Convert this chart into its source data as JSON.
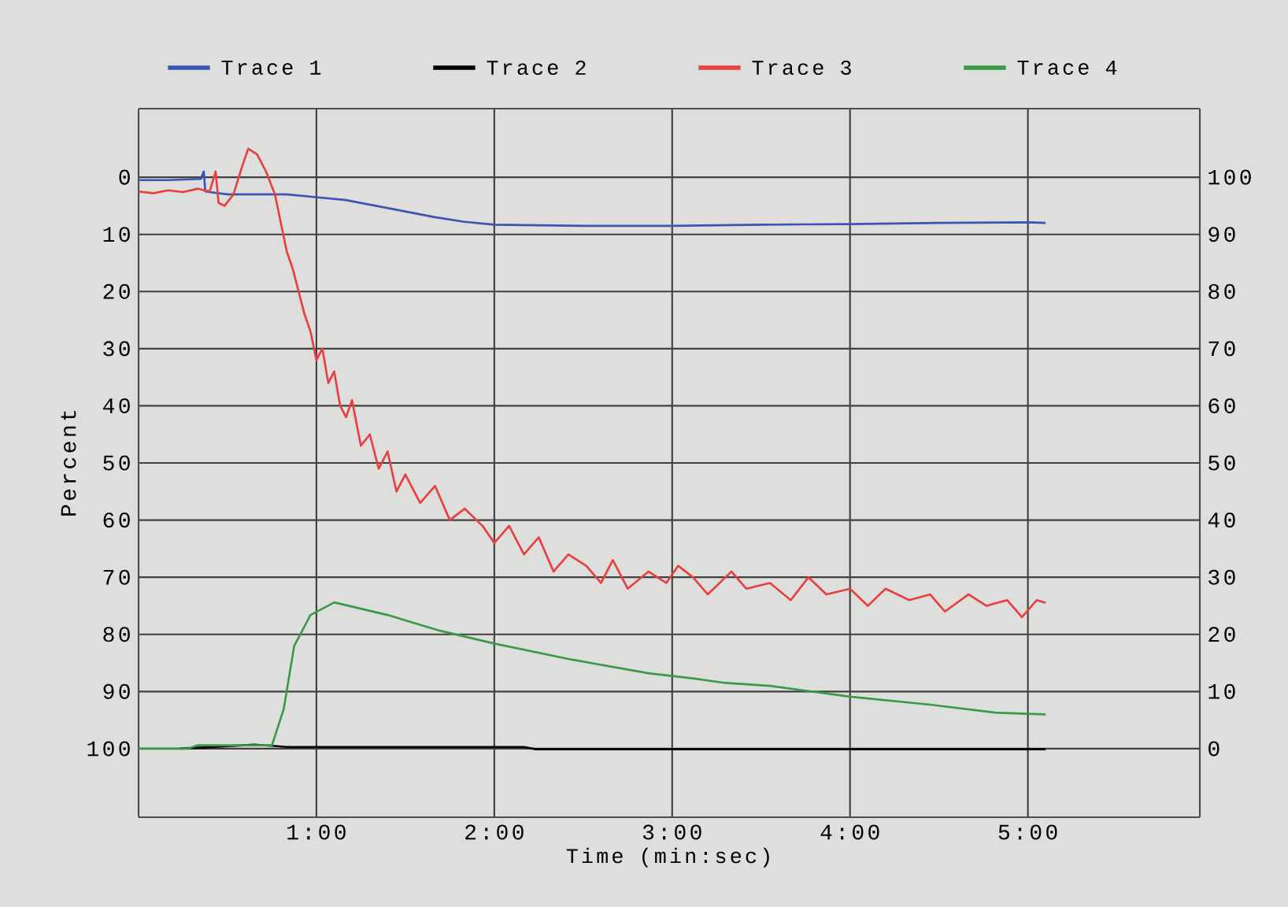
{
  "chart_data": {
    "type": "line",
    "xlabel": "Time (min:sec)",
    "ylabel": "Percent",
    "xlim": [
      0,
      358
    ],
    "ylim": [
      112,
      -12
    ],
    "y2lim": [
      -12,
      112
    ],
    "xticks": [
      {
        "value": 60,
        "label": "1:00"
      },
      {
        "value": 120,
        "label": "2:00"
      },
      {
        "value": 180,
        "label": "3:00"
      },
      {
        "value": 240,
        "label": "4:00"
      },
      {
        "value": 300,
        "label": "5:00"
      }
    ],
    "yticks": [
      0,
      10,
      20,
      30,
      40,
      50,
      60,
      70,
      80,
      90,
      100
    ],
    "y2ticks": [
      0,
      10,
      20,
      30,
      40,
      50,
      60,
      70,
      80,
      90,
      100
    ],
    "grid": true,
    "legend": "top",
    "marker": "none",
    "line_style": "solid",
    "series": [
      {
        "name": "Trace 1",
        "color": "#3a55b4",
        "x": [
          0,
          10,
          21,
          22,
          22.5,
          30,
          50,
          60,
          70,
          80,
          90,
          100,
          110,
          120,
          150,
          180,
          210,
          240,
          270,
          300,
          306
        ],
        "values": [
          0.5,
          0.5,
          0.3,
          -1,
          2.5,
          3,
          3,
          3.5,
          4,
          5,
          6,
          7,
          7.8,
          8.3,
          8.5,
          8.5,
          8.3,
          8.2,
          8.0,
          7.9,
          8.0
        ]
      },
      {
        "name": "Trace 2",
        "color": "#000000",
        "x": [
          14,
          39,
          45,
          50,
          130,
          134,
          306
        ],
        "values": [
          100,
          99.3,
          99.5,
          99.7,
          99.7,
          100.1,
          100.1
        ]
      },
      {
        "name": "Trace 3",
        "color": "#e84040",
        "x": [
          0,
          5,
          10,
          15,
          20,
          24,
          26,
          27,
          29,
          32,
          35,
          37,
          40,
          43,
          46,
          48,
          50,
          52,
          54,
          56,
          58,
          60,
          62,
          64,
          66,
          68,
          70,
          72,
          75,
          78,
          81,
          84,
          87,
          90,
          95,
          100,
          105,
          110,
          116,
          120,
          125,
          130,
          135,
          140,
          145,
          151,
          156,
          160,
          165,
          172,
          178,
          182,
          187,
          192,
          200,
          205,
          213,
          220,
          226,
          232,
          240,
          246,
          252,
          260,
          267,
          272,
          280,
          286,
          293,
          298,
          303,
          306
        ],
        "values": [
          2.5,
          2.8,
          2.3,
          2.6,
          2.0,
          2.5,
          -1,
          4.5,
          5,
          3,
          -2,
          -5,
          -4,
          -1,
          3,
          8,
          13,
          16,
          20,
          24,
          27,
          32,
          30,
          36,
          34,
          40,
          42,
          39,
          47,
          45,
          51,
          48,
          55,
          52,
          57,
          54,
          60,
          58,
          61,
          64,
          61,
          66,
          63,
          69,
          66,
          68,
          71,
          67,
          72,
          69,
          71,
          68,
          70,
          73,
          69,
          72,
          71,
          74,
          70,
          73,
          72,
          75,
          72,
          74,
          73,
          76,
          73,
          75,
          74,
          77,
          74,
          74.5
        ]
      },
      {
        "name": "Trace 4",
        "color": "#3a9a4a",
        "x": [
          0,
          16.6,
          20,
          45,
          49,
          52.5,
          58,
          66,
          84,
          102,
          120,
          146,
          172,
          187,
          198,
          213,
          240,
          267,
          289,
          306
        ],
        "values": [
          100,
          100,
          99.4,
          99.4,
          93,
          82,
          76.6,
          74.4,
          76.6,
          79.4,
          81.6,
          84.4,
          86.8,
          87.7,
          88.5,
          89,
          90.9,
          92.3,
          93.7,
          94
        ]
      }
    ]
  }
}
